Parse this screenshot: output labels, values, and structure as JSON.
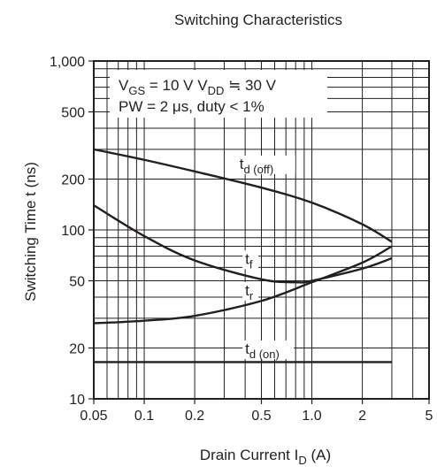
{
  "chart_data": {
    "type": "line",
    "title": "Switching Characteristics",
    "xlabel": {
      "main": "Drain Current  I",
      "sub": "D",
      "suffix": "  (A)"
    },
    "ylabel": "Switching Time  t  (ns)",
    "x_scale": "log",
    "y_scale": "log",
    "xlim": [
      0.05,
      5
    ],
    "ylim": [
      10,
      1000
    ],
    "grid": true,
    "x_ticks": [
      {
        "value": 0.05,
        "label": "0.05"
      },
      {
        "value": 0.1,
        "label": "0.1"
      },
      {
        "value": 0.2,
        "label": "0.2"
      },
      {
        "value": 0.5,
        "label": "0.5"
      },
      {
        "value": 1.0,
        "label": "1.0"
      },
      {
        "value": 2,
        "label": "2"
      },
      {
        "value": 5,
        "label": "5"
      }
    ],
    "y_ticks": [
      {
        "value": 10,
        "label": "10"
      },
      {
        "value": 20,
        "label": "20"
      },
      {
        "value": 50,
        "label": "50"
      },
      {
        "value": 100,
        "label": "100"
      },
      {
        "value": 200,
        "label": "200"
      },
      {
        "value": 500,
        "label": "500"
      },
      {
        "value": 1000,
        "label": "1,000"
      }
    ],
    "conditions": {
      "line1": [
        {
          "text": "V"
        },
        {
          "text": "GS",
          "sub": true
        },
        {
          "text": " = 10 V  V"
        },
        {
          "text": "DD",
          "sub": true
        },
        {
          "text": " ≒ 30 V"
        }
      ],
      "line2": [
        {
          "text": "PW = 2 μs, duty < 1%"
        }
      ]
    },
    "series": [
      {
        "name": "t",
        "name_sub": "d (off)",
        "x": [
          0.05,
          0.1,
          0.2,
          0.5,
          1.0,
          2.0,
          3.0
        ],
        "values": [
          300,
          260,
          222,
          178,
          145,
          108,
          85
        ]
      },
      {
        "name": "t",
        "name_sub": "f",
        "x": [
          0.05,
          0.1,
          0.2,
          0.5,
          0.8,
          1.0,
          2.0,
          3.0
        ],
        "values": [
          140,
          92,
          66,
          51,
          49,
          50,
          59,
          68
        ]
      },
      {
        "name": "t",
        "name_sub": "r",
        "x": [
          0.05,
          0.1,
          0.2,
          0.5,
          1.0,
          2.0,
          3.0
        ],
        "values": [
          28,
          29,
          31,
          38,
          49,
          64,
          80
        ]
      },
      {
        "name": "t",
        "name_sub": "d (on)",
        "x": [
          0.05,
          3.0
        ],
        "values": [
          16.5,
          16.5
        ]
      }
    ]
  }
}
